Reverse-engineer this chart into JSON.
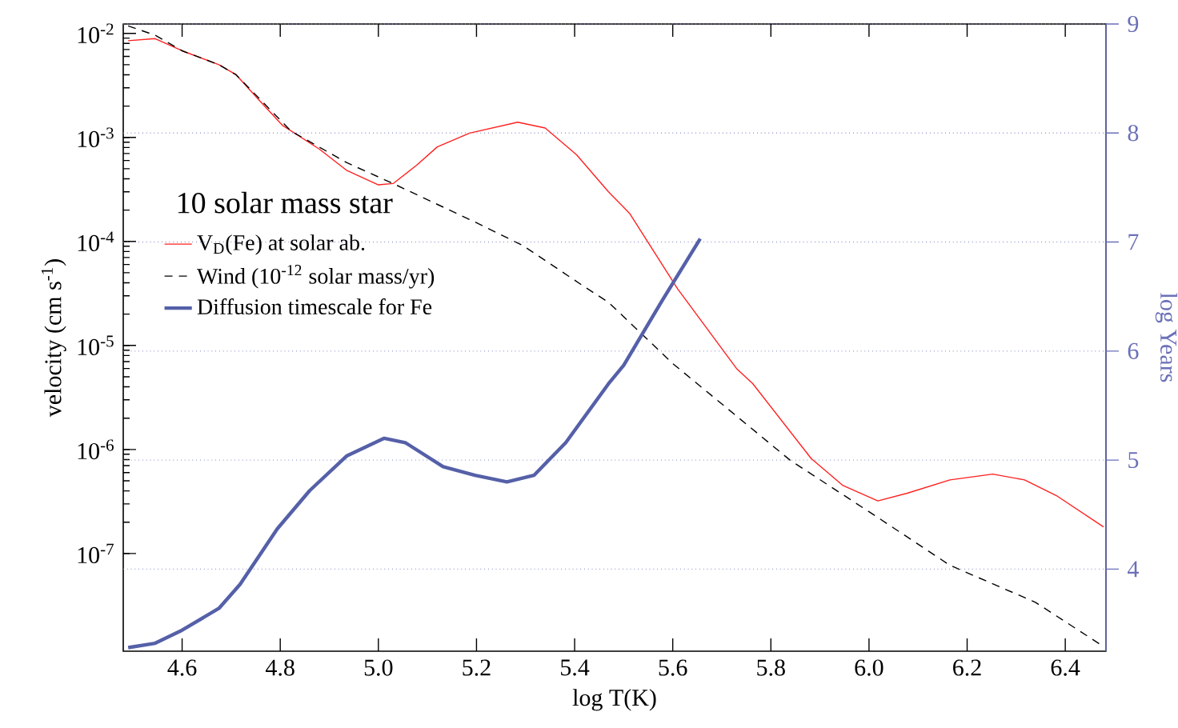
{
  "chart_data": {
    "type": "line",
    "xlabel": "log T(K)",
    "ylabel": "velocity (cm s$^{-1}$)",
    "y2label": "log Years",
    "legend_title": "10 solar mass star",
    "xlim": [
      4.48,
      6.483
    ],
    "xticks": [
      4.6,
      4.8,
      {
        "value": 5,
        "label": "5.0"
      },
      5.2,
      5.4,
      5.6,
      5.8,
      {
        "value": 6,
        "label": "6.0"
      },
      6.2,
      6.4
    ],
    "ylim": [
      1.15e-08,
      0.0123
    ],
    "yticks": [
      {
        "value": 1e-07,
        "label": "10$^{-7}$"
      },
      {
        "value": 1e-06,
        "label": "10$^{-6}$"
      },
      {
        "value": 1e-05,
        "label": "10$^{-5}$"
      },
      {
        "value": 0.0001,
        "label": "10$^{-4}$"
      },
      {
        "value": 0.001,
        "label": "10$^{-3}$"
      },
      {
        "value": 0.01,
        "label": "10$^{-2}$"
      }
    ],
    "y2lim": [
      3.247,
      9
    ],
    "y2ticks": [
      4,
      5,
      6,
      7,
      8,
      9
    ],
    "log": "y",
    "grid": "y2",
    "legend": "left",
    "series": [
      {
        "name": "V$_{D}$(Fe) at solar ab.",
        "color": "#ff2020",
        "line_style": "solid",
        "x": [
          4.49,
          4.545,
          4.6,
          4.675,
          4.71,
          4.76,
          4.805,
          4.88,
          4.936,
          5.0,
          5.03,
          5.078,
          5.12,
          5.186,
          5.284,
          5.34,
          5.404,
          5.469,
          5.512,
          5.61,
          5.73,
          5.763,
          5.882,
          5.947,
          6.018,
          6.078,
          6.165,
          6.252,
          6.317,
          6.382,
          6.478
        ],
        "values": [
          0.0085,
          0.0089,
          0.0068,
          0.005,
          0.004,
          0.0022,
          0.0013,
          0.00077,
          0.00048,
          0.00035,
          0.00036,
          0.00054,
          0.00081,
          0.0011,
          0.0014,
          0.00123,
          0.00068,
          0.0003,
          0.000186,
          3.5e-05,
          6e-06,
          4.3e-06,
          8.2e-07,
          4.5e-07,
          3.2e-07,
          3.8e-07,
          5.1e-07,
          5.8e-07,
          5.1e-07,
          3.6e-07,
          1.8e-07
        ]
      },
      {
        "name": "Wind (10$^{-12}$ solar mass/yr)",
        "color": "#000000",
        "line_style": "dashed",
        "x": [
          4.49,
          4.545,
          4.6,
          4.675,
          4.71,
          4.822,
          4.936,
          5.03,
          5.208,
          5.295,
          5.415,
          5.469,
          5.6,
          5.839,
          6.013,
          6.165,
          6.339,
          6.47
        ],
        "values": [
          0.0118,
          0.0096,
          0.0068,
          0.005,
          0.004,
          0.00115,
          0.00057,
          0.00036,
          0.000145,
          9.1e-05,
          3.8e-05,
          2.6e-05,
          6.7e-06,
          7.9e-07,
          2.3e-07,
          7.7e-08,
          3.4e-08,
          1.35e-08
        ]
      },
      {
        "name": "Diffusion timescale for Fe",
        "color": "#5560a8",
        "line_style": "solid",
        "axis": "y2",
        "x": [
          4.49,
          4.545,
          4.6,
          4.675,
          4.718,
          4.794,
          4.86,
          4.936,
          5.012,
          5.055,
          5.132,
          5.197,
          5.262,
          5.317,
          5.382,
          5.469,
          5.5,
          5.578,
          5.656
        ],
        "values": [
          3.28,
          3.32,
          3.44,
          3.64,
          3.86,
          4.37,
          4.72,
          5.04,
          5.2,
          5.16,
          4.94,
          4.86,
          4.8,
          4.86,
          5.16,
          5.7,
          5.87,
          6.46,
          7.03
        ]
      }
    ]
  }
}
